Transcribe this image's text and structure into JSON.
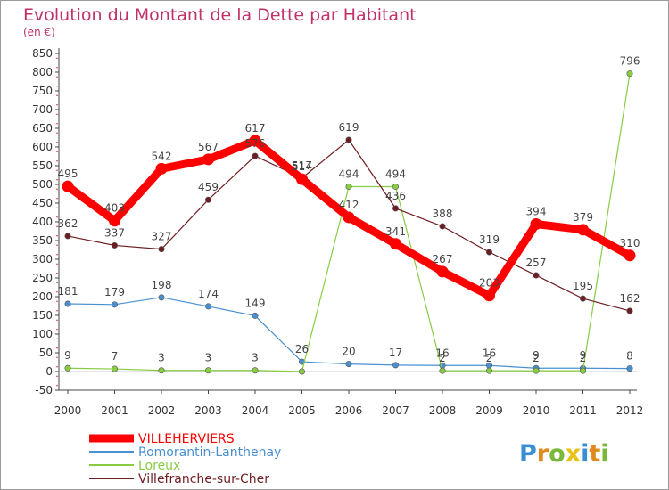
{
  "chart_data": {
    "type": "line",
    "title": "Evolution du Montant de la Dette par Habitant",
    "subtitle": "(en €)",
    "x": [
      "2000",
      "2001",
      "2002",
      "2003",
      "2004",
      "2005",
      "2006",
      "2007",
      "2008",
      "2009",
      "2010",
      "2011",
      "2012"
    ],
    "ylim": [
      -50,
      850
    ],
    "yticks": [
      -50,
      0,
      50,
      100,
      150,
      200,
      250,
      300,
      350,
      400,
      450,
      500,
      550,
      600,
      650,
      700,
      750,
      800,
      850
    ],
    "grid": false,
    "legend_position": "bottom-left",
    "series": [
      {
        "name": "VILLEHERVIERS",
        "color": "#ff0000",
        "values": [
          495,
          403,
          542,
          567,
          617,
          514,
          412,
          341,
          267,
          203,
          394,
          379,
          310
        ]
      },
      {
        "name": "Romorantin-Lanthenay",
        "color": "#4a90d0",
        "values": [
          181,
          179,
          198,
          174,
          149,
          26,
          20,
          17,
          16,
          16,
          9,
          9,
          8
        ]
      },
      {
        "name": "Loreux",
        "color": "#88cc44",
        "values": [
          9,
          7,
          3,
          3,
          3,
          0,
          494,
          494,
          2,
          2,
          2,
          2,
          796
        ]
      },
      {
        "name": "Villefranche-sur-Cher",
        "color": "#6e1e22",
        "values": [
          362,
          337,
          327,
          459,
          576,
          517,
          619,
          436,
          388,
          319,
          257,
          195,
          162
        ]
      }
    ],
    "data_labels": {
      "VILLEHERVIERS": [
        "495",
        "403",
        "542",
        "567",
        "617",
        "514",
        "412",
        "341",
        "267",
        "203",
        "394",
        "379",
        "310"
      ],
      "Romorantin-Lanthenay": [
        "181",
        "179",
        "198",
        "174",
        "149",
        "26",
        "20",
        "17",
        "16",
        "16",
        "9",
        "9",
        "8"
      ],
      "Loreux": [
        "9",
        "7",
        "3",
        "3",
        "3",
        "",
        "494",
        "494",
        "2",
        "2",
        "2",
        "2",
        "796"
      ],
      "Villefranche-sur-Cher": [
        "362",
        "337",
        "327",
        "459",
        "576",
        "517",
        "619",
        "436",
        "388",
        "319",
        "257",
        "195",
        "162"
      ]
    }
  },
  "logo": {
    "letters": [
      "P",
      "r",
      "o",
      "x",
      "i",
      "t",
      "i"
    ],
    "colors": [
      "#3a8fd4",
      "#e08a1e",
      "#7ab83a",
      "#e8c210",
      "#3a8fd4",
      "#e08a1e",
      "#7ab83a"
    ]
  }
}
